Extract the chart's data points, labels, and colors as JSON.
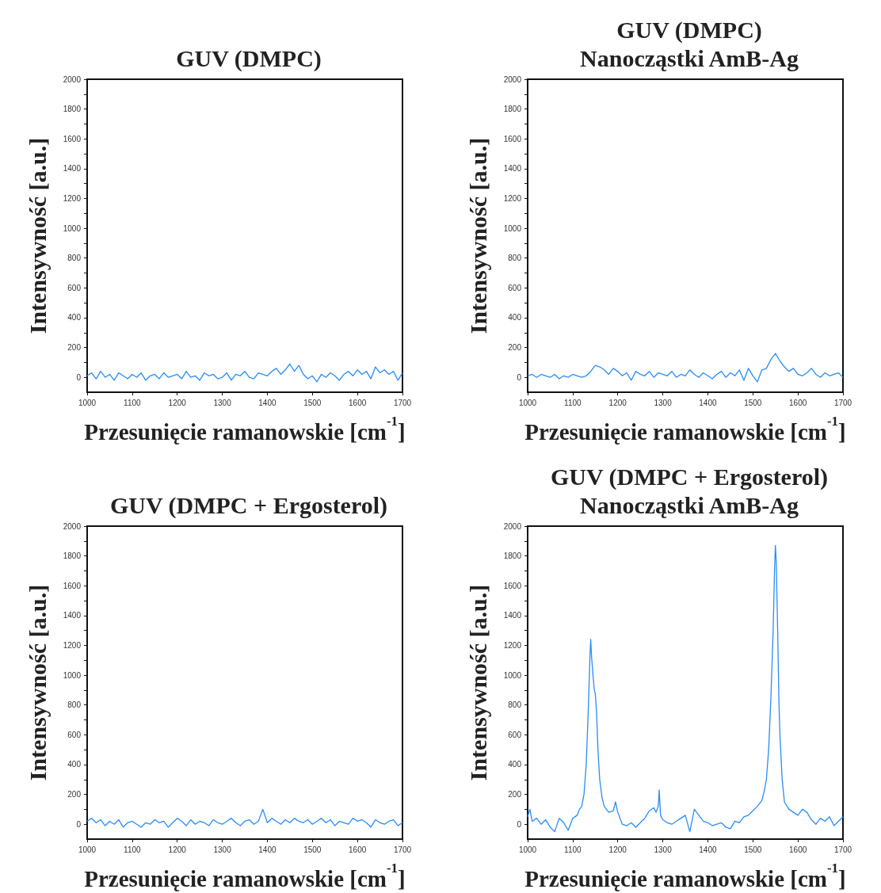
{
  "chart_data": [
    {
      "type": "line",
      "title": "GUV (DMPC)",
      "xlabel": "Przesunięcie ramanowskie [cm$^{-1}$]",
      "ylabel": "Intensywność [a.u.]",
      "xlim": [
        1000,
        1700
      ],
      "xticks": [
        1000,
        1100,
        1200,
        1300,
        1400,
        1500,
        1600,
        1700
      ],
      "ylim": [
        -100,
        2000
      ],
      "yticks": [
        0,
        {
          "value": 100,
          "label": null
        },
        200,
        {
          "value": 300,
          "label": null
        },
        400,
        {
          "value": 500,
          "label": null
        },
        600,
        {
          "value": 700,
          "label": null
        },
        800,
        {
          "value": 900,
          "label": null
        },
        1000,
        {
          "value": 1100,
          "label": null
        },
        1200,
        {
          "value": 1300,
          "label": null
        },
        1400,
        {
          "value": 1500,
          "label": null
        },
        1600,
        {
          "value": 1700,
          "label": null
        },
        1800,
        {
          "value": 1900,
          "label": null
        },
        2000
      ],
      "x": [
        1000,
        1010,
        1020,
        1030,
        1040,
        1050,
        1060,
        1070,
        1080,
        1090,
        1100,
        1110,
        1120,
        1130,
        1140,
        1150,
        1160,
        1170,
        1180,
        1190,
        1200,
        1210,
        1220,
        1230,
        1240,
        1250,
        1260,
        1270,
        1280,
        1290,
        1300,
        1310,
        1320,
        1330,
        1340,
        1350,
        1360,
        1370,
        1380,
        1390,
        1400,
        1410,
        1420,
        1430,
        1440,
        1450,
        1460,
        1470,
        1480,
        1490,
        1500,
        1510,
        1520,
        1530,
        1540,
        1550,
        1560,
        1570,
        1580,
        1590,
        1600,
        1610,
        1620,
        1630,
        1640,
        1650,
        1660,
        1670,
        1680,
        1690,
        1700
      ],
      "series": [
        {
          "color": "#2b8cf5",
          "values": [
            10,
            30,
            -10,
            40,
            0,
            20,
            -20,
            30,
            10,
            -10,
            20,
            0,
            30,
            -20,
            10,
            20,
            -10,
            30,
            0,
            10,
            20,
            -10,
            40,
            0,
            10,
            -20,
            30,
            10,
            20,
            -10,
            0,
            30,
            -20,
            20,
            10,
            40,
            0,
            -10,
            30,
            20,
            10,
            40,
            60,
            20,
            50,
            90,
            40,
            80,
            20,
            -10,
            10,
            -30,
            20,
            0,
            30,
            10,
            -20,
            20,
            40,
            10,
            50,
            20,
            40,
            -10,
            70,
            30,
            50,
            20,
            40,
            -20,
            30
          ]
        }
      ]
    },
    {
      "type": "line",
      "title": "GUV (DMPC)\nNanocząstki AmB-Ag",
      "xlabel": "Przesunięcie ramanowskie [cm$^{-1}$]",
      "ylabel": "Intensywność [a.u.]",
      "xlim": [
        1000,
        1700
      ],
      "xticks": [
        1000,
        1100,
        1200,
        1300,
        1400,
        1500,
        1600,
        1700
      ],
      "ylim": [
        -100,
        2000
      ],
      "yticks": [
        0,
        {
          "value": 100,
          "label": null
        },
        200,
        {
          "value": 300,
          "label": null
        },
        400,
        {
          "value": 500,
          "label": null
        },
        600,
        {
          "value": 700,
          "label": null
        },
        800,
        {
          "value": 900,
          "label": null
        },
        1000,
        {
          "value": 1100,
          "label": null
        },
        1200,
        {
          "value": 1300,
          "label": null
        },
        1400,
        {
          "value": 1500,
          "label": null
        },
        1600,
        {
          "value": 1700,
          "label": null
        },
        1800,
        {
          "value": 1900,
          "label": null
        },
        2000
      ],
      "x": [
        1000,
        1010,
        1020,
        1030,
        1040,
        1050,
        1060,
        1070,
        1080,
        1090,
        1100,
        1110,
        1120,
        1130,
        1140,
        1150,
        1160,
        1170,
        1180,
        1190,
        1200,
        1210,
        1220,
        1230,
        1240,
        1250,
        1260,
        1270,
        1280,
        1290,
        1300,
        1310,
        1320,
        1330,
        1340,
        1350,
        1360,
        1370,
        1380,
        1390,
        1400,
        1410,
        1420,
        1430,
        1440,
        1450,
        1460,
        1470,
        1480,
        1490,
        1500,
        1510,
        1520,
        1530,
        1540,
        1550,
        1560,
        1570,
        1580,
        1590,
        1600,
        1610,
        1620,
        1630,
        1640,
        1650,
        1660,
        1670,
        1680,
        1690,
        1700
      ],
      "series": [
        {
          "color": "#2b8cf5",
          "values": [
            10,
            20,
            0,
            20,
            10,
            0,
            20,
            -10,
            10,
            0,
            20,
            10,
            0,
            10,
            40,
            80,
            70,
            50,
            20,
            60,
            40,
            10,
            30,
            -20,
            40,
            20,
            10,
            40,
            0,
            30,
            20,
            10,
            40,
            0,
            20,
            10,
            50,
            20,
            0,
            30,
            10,
            -10,
            20,
            40,
            0,
            30,
            10,
            50,
            -20,
            60,
            10,
            -30,
            50,
            60,
            120,
            160,
            110,
            70,
            40,
            60,
            20,
            10,
            30,
            60,
            20,
            0,
            30,
            10,
            20,
            30,
            0
          ]
        }
      ]
    },
    {
      "type": "line",
      "title": "GUV (DMPC + Ergosterol)",
      "xlabel": "Przesunięcie ramanowskie [cm$^{-1}$]",
      "ylabel": "Intensywność [a.u.]",
      "xlim": [
        1000,
        1700
      ],
      "xticks": [
        1000,
        1100,
        1200,
        1300,
        1400,
        1500,
        1600,
        1700
      ],
      "ylim": [
        -100,
        2000
      ],
      "yticks": [
        0,
        {
          "value": 100,
          "label": null
        },
        200,
        {
          "value": 300,
          "label": null
        },
        400,
        {
          "value": 500,
          "label": null
        },
        600,
        {
          "value": 700,
          "label": null
        },
        800,
        {
          "value": 900,
          "label": null
        },
        1000,
        {
          "value": 1100,
          "label": null
        },
        1200,
        {
          "value": 1300,
          "label": null
        },
        1400,
        {
          "value": 1500,
          "label": null
        },
        1600,
        {
          "value": 1700,
          "label": null
        },
        1800,
        {
          "value": 1900,
          "label": null
        },
        2000
      ],
      "x": [
        1000,
        1010,
        1020,
        1030,
        1040,
        1050,
        1060,
        1070,
        1080,
        1090,
        1100,
        1110,
        1120,
        1130,
        1140,
        1150,
        1160,
        1170,
        1180,
        1190,
        1200,
        1210,
        1220,
        1230,
        1240,
        1250,
        1260,
        1270,
        1280,
        1290,
        1300,
        1310,
        1320,
        1330,
        1340,
        1350,
        1360,
        1370,
        1380,
        1390,
        1400,
        1410,
        1420,
        1430,
        1440,
        1450,
        1460,
        1470,
        1480,
        1490,
        1500,
        1510,
        1520,
        1530,
        1540,
        1550,
        1560,
        1570,
        1580,
        1590,
        1600,
        1610,
        1620,
        1630,
        1640,
        1650,
        1660,
        1670,
        1680,
        1690,
        1700
      ],
      "series": [
        {
          "color": "#2b8cf5",
          "values": [
            20,
            40,
            10,
            30,
            -10,
            20,
            0,
            30,
            -20,
            10,
            20,
            0,
            -20,
            10,
            0,
            30,
            10,
            20,
            -20,
            10,
            40,
            20,
            -10,
            30,
            0,
            20,
            10,
            -10,
            30,
            10,
            0,
            20,
            40,
            10,
            -10,
            20,
            30,
            0,
            20,
            100,
            10,
            40,
            20,
            0,
            30,
            10,
            40,
            20,
            10,
            30,
            0,
            20,
            40,
            10,
            30,
            -10,
            20,
            10,
            0,
            40,
            20,
            30,
            10,
            -20,
            30,
            10,
            0,
            20,
            30,
            -10,
            10
          ]
        }
      ]
    },
    {
      "type": "line",
      "title": "GUV (DMPC + Ergosterol)\nNanocząstki AmB-Ag",
      "xlabel": "Przesunięcie ramanowskie [cm$^{-1}$]",
      "ylabel": "Intensywność [a.u.]",
      "xlim": [
        1000,
        1700
      ],
      "xticks": [
        1000,
        1100,
        1200,
        1300,
        1400,
        1500,
        1600,
        1700
      ],
      "ylim": [
        -100,
        2000
      ],
      "yticks": [
        0,
        {
          "value": 100,
          "label": null
        },
        200,
        {
          "value": 300,
          "label": null
        },
        400,
        {
          "value": 500,
          "label": null
        },
        600,
        {
          "value": 700,
          "label": null
        },
        800,
        {
          "value": 900,
          "label": null
        },
        1000,
        {
          "value": 1100,
          "label": null
        },
        1200,
        {
          "value": 1300,
          "label": null
        },
        1400,
        {
          "value": 1500,
          "label": null
        },
        1600,
        {
          "value": 1700,
          "label": null
        },
        1800,
        {
          "value": 1900,
          "label": null
        },
        2000
      ],
      "x": [
        1000,
        1005,
        1010,
        1020,
        1030,
        1040,
        1050,
        1060,
        1070,
        1080,
        1090,
        1100,
        1110,
        1115,
        1120,
        1125,
        1130,
        1135,
        1138,
        1140,
        1142,
        1145,
        1148,
        1150,
        1153,
        1156,
        1160,
        1165,
        1170,
        1180,
        1190,
        1195,
        1200,
        1210,
        1220,
        1230,
        1240,
        1250,
        1260,
        1270,
        1280,
        1285,
        1290,
        1292,
        1295,
        1300,
        1310,
        1320,
        1330,
        1340,
        1350,
        1360,
        1370,
        1380,
        1390,
        1400,
        1410,
        1420,
        1430,
        1440,
        1450,
        1460,
        1470,
        1480,
        1490,
        1500,
        1510,
        1520,
        1525,
        1530,
        1535,
        1540,
        1545,
        1548,
        1550,
        1552,
        1555,
        1558,
        1560,
        1565,
        1570,
        1580,
        1590,
        1600,
        1610,
        1620,
        1630,
        1640,
        1650,
        1660,
        1670,
        1680,
        1690,
        1700
      ],
      "series": [
        {
          "color": "#2b8cf5",
          "values": [
            50,
            100,
            20,
            40,
            0,
            30,
            -20,
            -50,
            40,
            10,
            -40,
            40,
            60,
            100,
            120,
            200,
            400,
            800,
            1100,
            1240,
            1120,
            1000,
            900,
            880,
            750,
            500,
            300,
            180,
            120,
            80,
            90,
            150,
            80,
            0,
            -10,
            10,
            -20,
            10,
            40,
            90,
            110,
            80,
            120,
            230,
            60,
            30,
            10,
            0,
            20,
            40,
            60,
            -50,
            100,
            60,
            20,
            10,
            -10,
            0,
            10,
            -20,
            -30,
            20,
            10,
            50,
            60,
            90,
            120,
            160,
            220,
            300,
            500,
            850,
            1300,
            1700,
            1870,
            1750,
            1300,
            800,
            600,
            300,
            150,
            100,
            80,
            60,
            100,
            80,
            30,
            0,
            40,
            20,
            50,
            -10,
            20,
            50
          ]
        }
      ]
    }
  ]
}
